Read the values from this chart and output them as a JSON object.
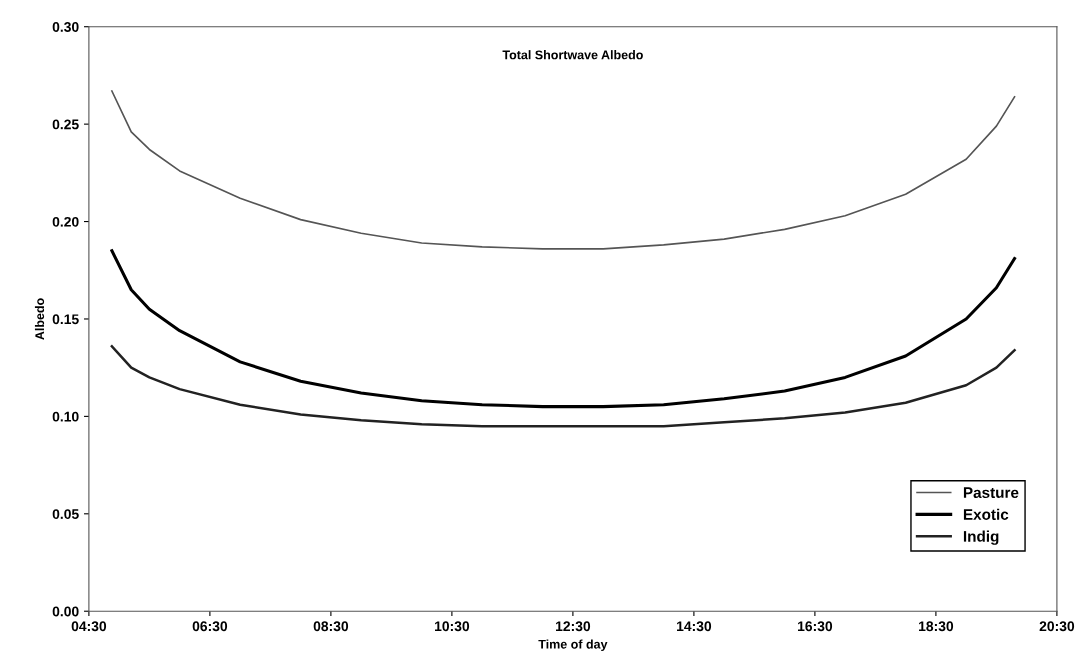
{
  "chart_data": {
    "type": "line",
    "title": "Total Shortwave Albedo",
    "xlabel": "Time of day",
    "ylabel": "Albedo",
    "x": [
      4.88,
      5.2,
      5.5,
      6,
      7,
      8,
      9,
      10,
      11,
      12,
      13,
      14,
      15,
      16,
      17,
      18,
      19,
      19.5,
      19.8
    ],
    "series": [
      {
        "name": "Pasture",
        "color": "#555555",
        "values": [
          0.267,
          0.246,
          0.237,
          0.226,
          0.212,
          0.201,
          0.194,
          0.189,
          0.187,
          0.186,
          0.186,
          0.188,
          0.191,
          0.196,
          0.203,
          0.214,
          0.232,
          0.249,
          0.264
        ]
      },
      {
        "name": "Exotic",
        "color": "#000000",
        "values": [
          0.185,
          0.165,
          0.155,
          0.144,
          0.128,
          0.118,
          0.112,
          0.108,
          0.106,
          0.105,
          0.105,
          0.106,
          0.109,
          0.113,
          0.12,
          0.131,
          0.15,
          0.166,
          0.181
        ]
      },
      {
        "name": "Indig",
        "color": "#222222",
        "values": [
          0.136,
          0.125,
          0.12,
          0.114,
          0.106,
          0.101,
          0.098,
          0.096,
          0.095,
          0.095,
          0.095,
          0.095,
          0.097,
          0.099,
          0.102,
          0.107,
          0.116,
          0.125,
          0.134
        ]
      }
    ],
    "xlim": [
      4.5,
      20.5
    ],
    "xticks": [
      {
        "value": 4.5,
        "label": "04:30"
      },
      {
        "value": 6.5,
        "label": "06:30"
      },
      {
        "value": 8.5,
        "label": "08:30"
      },
      {
        "value": 10.5,
        "label": "10:30"
      },
      {
        "value": 12.5,
        "label": "12:30"
      },
      {
        "value": 14.5,
        "label": "14:30"
      },
      {
        "value": 16.5,
        "label": "16:30"
      },
      {
        "value": 18.5,
        "label": "18:30"
      },
      {
        "value": 20.5,
        "label": "20:30"
      }
    ],
    "ylim": [
      0,
      0.3
    ],
    "yticks": [
      {
        "value": 0,
        "label": "0.00"
      },
      {
        "value": 0.05,
        "label": "0.05"
      },
      {
        "value": 0.1,
        "label": "0.10"
      },
      {
        "value": 0.15,
        "label": "0.15"
      },
      {
        "value": 0.2,
        "label": "0.20"
      },
      {
        "value": 0.25,
        "label": "0.25"
      },
      {
        "value": 0.3,
        "label": "0.30"
      }
    ],
    "legend": "bottom right",
    "grid": false,
    "marker": "none",
    "line_style": "solid"
  }
}
